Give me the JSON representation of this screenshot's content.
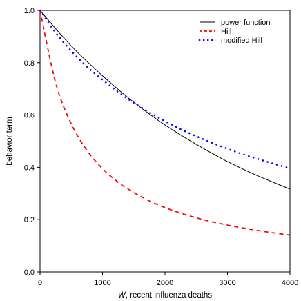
{
  "chart_data": {
    "type": "line",
    "title": "",
    "xlabel_var": "W",
    "xlabel_rest": ", recent influenza deaths",
    "ylabel": "behavior term",
    "xlim": [
      0,
      4000
    ],
    "ylim": [
      0,
      1.0
    ],
    "x_ticks": [
      0,
      1000,
      2000,
      3000,
      4000
    ],
    "y_ticks": [
      0.0,
      0.2,
      0.4,
      0.6,
      0.8,
      1.0
    ],
    "x_tick_labels": [
      "0",
      "1000",
      "2000",
      "3000",
      "4000"
    ],
    "y_tick_labels": [
      "0.0",
      "0.2",
      "0.4",
      "0.6",
      "0.8",
      "1.0"
    ],
    "grid": false,
    "legend_position": "top-right",
    "x": [
      0,
      250,
      500,
      750,
      1000,
      1250,
      1500,
      1750,
      2000,
      2250,
      2500,
      2750,
      3000,
      3250,
      3500,
      3750,
      4000
    ],
    "series": [
      {
        "name": "power function",
        "style": "solid",
        "color": "#000000",
        "values": [
          1.0,
          0.93,
          0.864,
          0.805,
          0.75,
          0.698,
          0.649,
          0.604,
          0.562,
          0.524,
          0.488,
          0.454,
          0.422,
          0.393,
          0.366,
          0.341,
          0.317
        ]
      },
      {
        "name": "Hill",
        "style": "dashed",
        "color": "#ff0000",
        "values": [
          1.0,
          0.723,
          0.566,
          0.465,
          0.395,
          0.343,
          0.304,
          0.272,
          0.246,
          0.225,
          0.207,
          0.192,
          0.179,
          0.168,
          0.158,
          0.149,
          0.141
        ]
      },
      {
        "name": "modified Hill",
        "style": "dotted",
        "color": "#0000ff",
        "values": [
          1.0,
          0.915,
          0.845,
          0.785,
          0.735,
          0.688,
          0.647,
          0.61,
          0.577,
          0.546,
          0.519,
          0.494,
          0.471,
          0.45,
          0.431,
          0.413,
          0.396
        ]
      }
    ]
  }
}
